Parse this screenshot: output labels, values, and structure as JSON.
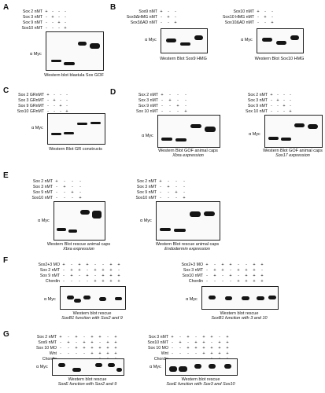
{
  "panels": [
    {
      "letter": "A",
      "caption": "Western blot blastula Sox GOF",
      "caption2": "",
      "rows": [
        "Sox 2 nMT",
        "Sox 3 nMT",
        "Sox 9 nMT",
        "Sox10 nMT"
      ],
      "signs": [
        [
          "+",
          "-",
          "-",
          "-"
        ],
        [
          "-",
          "+",
          "-",
          "-"
        ],
        [
          "-",
          "-",
          "+",
          "-"
        ],
        [
          "-",
          "-",
          "-",
          "+"
        ]
      ],
      "antibody": "α Myc"
    },
    {
      "letter": "B",
      "caption": "Western Blot Sox9 HMG",
      "caption2": "",
      "rows": [
        "Sox9 nMT",
        "Sox9ΔHMG nMT",
        "Sox3ΔAD nMT"
      ],
      "signs": [
        [
          "+",
          "-",
          "-"
        ],
        [
          "-",
          "+",
          "-"
        ],
        [
          "-",
          "-",
          "+"
        ]
      ],
      "antibody": "α Myc"
    },
    {
      "letter": "",
      "caption": "Western Blot Sox10 HMG",
      "caption2": "",
      "rows": [
        "Sox10 nMT",
        "Sox10 HMG nMT",
        "Sox10ΔAD nMT"
      ],
      "signs": [
        [
          "+",
          "-",
          "-"
        ],
        [
          "-",
          "+",
          "-"
        ],
        [
          "-",
          "-",
          "+"
        ]
      ],
      "antibody": "α Myc"
    },
    {
      "letter": "C",
      "caption": "Western Blot GR constructs",
      "caption2": "",
      "rows": [
        "Sox 2 GRnMT",
        "Sox 3 GRnMT",
        "Sox 9 GRnMT",
        "Sox10 GRnMT"
      ],
      "signs": [
        [
          "+",
          "-",
          "-",
          "-"
        ],
        [
          "-",
          "+",
          "-",
          "-"
        ],
        [
          "-",
          "-",
          "+",
          "-"
        ],
        [
          "-",
          "-",
          "-",
          "+"
        ]
      ],
      "antibody": "α Myc"
    },
    {
      "letter": "D",
      "caption": "Western Blot GOF animal caps",
      "caption2": "Xbra expression",
      "rows": [
        "Sox 2 nMT",
        "Sox 3 nMT",
        "Sox 9 nMT",
        "Sox 10 nMT"
      ],
      "signs": [
        [
          "+",
          "-",
          "-",
          "-"
        ],
        [
          "-",
          "+",
          "-",
          "-"
        ],
        [
          "-",
          "-",
          "+",
          "-"
        ],
        [
          "-",
          "-",
          "-",
          "+"
        ]
      ],
      "antibody": "α Myc"
    },
    {
      "letter": "",
      "caption": "Western Blot GOF animal caps",
      "caption2": "Sox17 expression",
      "rows": [
        "Sox 2 nMT",
        "Sox 3 nMT",
        "Sox 9 nMT",
        "Sox 10 nMT"
      ],
      "signs": [
        [
          "+",
          "-",
          "-",
          "-"
        ],
        [
          "-",
          "+",
          "-",
          "-"
        ],
        [
          "-",
          "-",
          "+",
          "-"
        ],
        [
          "-",
          "-",
          "-",
          "+"
        ]
      ],
      "antibody": "α Myc"
    },
    {
      "letter": "E",
      "caption": "Western Blot rescue animal caps",
      "caption2": "Xbra expression",
      "rows": [
        "Sox 2 nMT",
        "Sox 3 nMT",
        "Sox 9 nMT",
        "Sox10 nMT"
      ],
      "signs": [
        [
          "+",
          "-",
          "-",
          "-"
        ],
        [
          "-",
          "+",
          "-",
          "-"
        ],
        [
          "-",
          "-",
          "+",
          "-"
        ],
        [
          "-",
          "-",
          "-",
          "+"
        ]
      ],
      "antibody": "α Myc"
    },
    {
      "letter": "",
      "caption": "Western Blot rescue animal caps",
      "caption2": "Endodermin expression",
      "rows": [
        "Sox 2 nMT",
        "Sox 3 nMT",
        "Sox 9 nMT",
        "Sox10 nMT"
      ],
      "signs": [
        [
          "+",
          "-",
          "-",
          "-"
        ],
        [
          "-",
          "+",
          "-",
          "-"
        ],
        [
          "-",
          "-",
          "+",
          "-"
        ],
        [
          "-",
          "-",
          "-",
          "+"
        ]
      ],
      "antibody": "α Myc"
    },
    {
      "letter": "F",
      "caption": "Western blot rescue",
      "caption2": "SoxB1 function with Sox2 and 9",
      "rows": [
        "Sox2+3 MO",
        "Sox 2 nMT",
        "Sox 9 nMT",
        "Chordin"
      ],
      "signs": [
        [
          "+",
          "-",
          "+",
          "+",
          "-",
          "-",
          "+",
          "+"
        ],
        [
          "-",
          "+",
          "+",
          "-",
          "+",
          "+",
          "+",
          "-"
        ],
        [
          "-",
          "+",
          "-",
          "+",
          "-",
          "+",
          "+",
          "+"
        ],
        [
          "-",
          "-",
          "-",
          "-",
          "+",
          "+",
          "+",
          "+"
        ]
      ],
      "antibody": "α Myc"
    },
    {
      "letter": "",
      "caption": "Western blot rescue",
      "caption2": "SoxB1 function with 3 and 10",
      "rows": [
        "Sox2+3 MO",
        "Sox 3 nMT",
        "Sox10 nMT",
        "Chordin"
      ],
      "signs": [
        [
          "+",
          "-",
          "+",
          "+",
          "-",
          "-",
          "+",
          "+"
        ],
        [
          "-",
          "+",
          "+",
          "-",
          "+",
          "+",
          "+",
          "-"
        ],
        [
          "-",
          "+",
          "-",
          "+",
          "-",
          "+",
          "+",
          "+"
        ],
        [
          "-",
          "-",
          "-",
          "-",
          "+",
          "+",
          "+",
          "+"
        ]
      ],
      "antibody": "α Myc"
    },
    {
      "letter": "G",
      "caption": "Western blot rescue",
      "caption2": "SoxE function with Sox2 and 9",
      "rows": [
        "Sox 2 nMT",
        "Sox9 nMT",
        "Sox 10 MO",
        "Wnt",
        "Chordin"
      ],
      "signs": [
        [
          "+",
          "-",
          "+",
          "-",
          "+",
          "+",
          "-",
          "+"
        ],
        [
          "-",
          "+",
          "-",
          "+",
          "+",
          "-",
          "+",
          "+"
        ],
        [
          "-",
          "-",
          "+",
          "+",
          "+",
          "+",
          "+",
          "+"
        ],
        [
          "-",
          "-",
          "-",
          "-",
          "+",
          "+",
          "+",
          "+"
        ],
        [
          "-",
          "-",
          "-",
          "-",
          "-",
          "+",
          "+",
          "+"
        ]
      ],
      "antibody": "α Myc"
    },
    {
      "letter": "",
      "caption": "Western blot rescue",
      "caption2": "SoxE function with Sox3 and Sox10",
      "rows": [
        "Sox 3 nMT",
        "Sox10 nMT",
        "Sox 10 MO",
        "Wnt",
        "Chordin"
      ],
      "signs": [
        [
          "+",
          "-",
          "+",
          "-",
          "+",
          "+",
          "-",
          "+"
        ],
        [
          "-",
          "+",
          "-",
          "+",
          "+",
          "-",
          "+",
          "+"
        ],
        [
          "-",
          "-",
          "+",
          "+",
          "+",
          "+",
          "+",
          "+"
        ],
        [
          "-",
          "-",
          "-",
          "-",
          "+",
          "+",
          "+",
          "+"
        ],
        [
          "-",
          "-",
          "-",
          "-",
          "-",
          "+",
          "+",
          "+"
        ]
      ],
      "antibody": "α Myc"
    }
  ]
}
